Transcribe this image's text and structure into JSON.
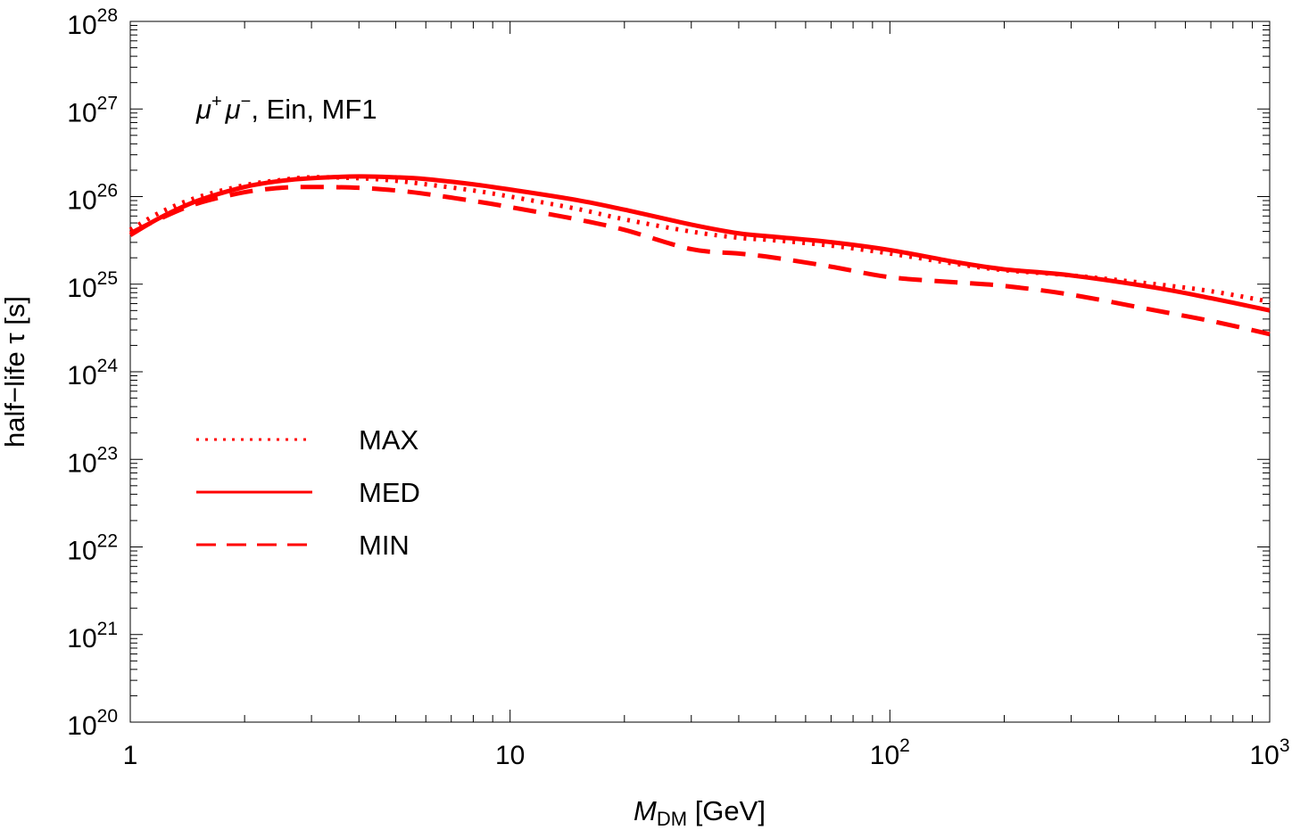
{
  "chart_data": {
    "type": "line",
    "title": "",
    "annotation": {
      "particle": "μ",
      "sup_plus": "+",
      "sup_minus": "−",
      "rest": ", Ein, MF1"
    },
    "xlabel": {
      "symbol": "M",
      "subscript": "DM",
      "units": " [GeV]"
    },
    "ylabel": "half−life τ [s]",
    "xscale": "log",
    "yscale": "log",
    "xlim": [
      1,
      1000
    ],
    "ylim_exp": [
      20,
      28
    ],
    "x_tick_labels": [
      {
        "value": 1,
        "base": "1",
        "exp": ""
      },
      {
        "value": 10,
        "base": "10",
        "exp": ""
      },
      {
        "value": 100,
        "base": "10",
        "exp": "2"
      },
      {
        "value": 1000,
        "base": "10",
        "exp": "3"
      }
    ],
    "y_tick_labels": [
      {
        "exp_value": 20,
        "base": "10",
        "exp": "20"
      },
      {
        "exp_value": 21,
        "base": "10",
        "exp": "21"
      },
      {
        "exp_value": 22,
        "base": "10",
        "exp": "22"
      },
      {
        "exp_value": 23,
        "base": "10",
        "exp": "23"
      },
      {
        "exp_value": 24,
        "base": "10",
        "exp": "24"
      },
      {
        "exp_value": 25,
        "base": "10",
        "exp": "25"
      },
      {
        "exp_value": 26,
        "base": "10",
        "exp": "26"
      },
      {
        "exp_value": 27,
        "base": "10",
        "exp": "27"
      },
      {
        "exp_value": 28,
        "base": "10",
        "exp": "28"
      }
    ],
    "color": "#ff0000",
    "legend_placement": "middle-left",
    "series": [
      {
        "name": "MAX",
        "style": "dotted",
        "x": [
          1,
          1.2,
          1.5,
          2,
          2.5,
          3,
          4,
          5,
          6,
          8,
          10,
          15,
          20,
          30,
          40,
          50,
          70,
          100,
          150,
          200,
          300,
          500,
          700,
          1000
        ],
        "log10_y": [
          25.62,
          25.82,
          25.99,
          26.13,
          26.19,
          26.22,
          26.21,
          26.18,
          26.14,
          26.07,
          26.0,
          25.86,
          25.74,
          25.6,
          25.53,
          25.5,
          25.44,
          25.35,
          25.23,
          25.16,
          25.1,
          25.0,
          24.92,
          24.8
        ]
      },
      {
        "name": "MED",
        "style": "solid",
        "x": [
          1,
          1.2,
          1.5,
          2,
          2.5,
          3,
          4,
          5,
          6,
          8,
          10,
          15,
          20,
          30,
          40,
          50,
          70,
          100,
          150,
          200,
          300,
          500,
          700,
          1000
        ],
        "log10_y": [
          25.56,
          25.76,
          25.95,
          26.11,
          26.18,
          26.21,
          26.23,
          26.22,
          26.2,
          26.14,
          26.08,
          25.96,
          25.85,
          25.68,
          25.58,
          25.54,
          25.48,
          25.39,
          25.25,
          25.17,
          25.1,
          24.96,
          24.84,
          24.7
        ]
      },
      {
        "name": "MIN",
        "style": "dashed",
        "x": [
          1,
          1.2,
          1.5,
          2,
          2.5,
          3,
          4,
          5,
          6,
          8,
          10,
          15,
          20,
          30,
          40,
          50,
          70,
          100,
          150,
          200,
          300,
          500,
          700,
          1000
        ],
        "log10_y": [
          25.58,
          25.75,
          25.92,
          26.05,
          26.1,
          26.11,
          26.1,
          26.07,
          26.03,
          25.95,
          25.88,
          25.74,
          25.62,
          25.4,
          25.35,
          25.3,
          25.2,
          25.08,
          25.02,
          24.98,
          24.88,
          24.7,
          24.58,
          24.43
        ]
      }
    ]
  }
}
